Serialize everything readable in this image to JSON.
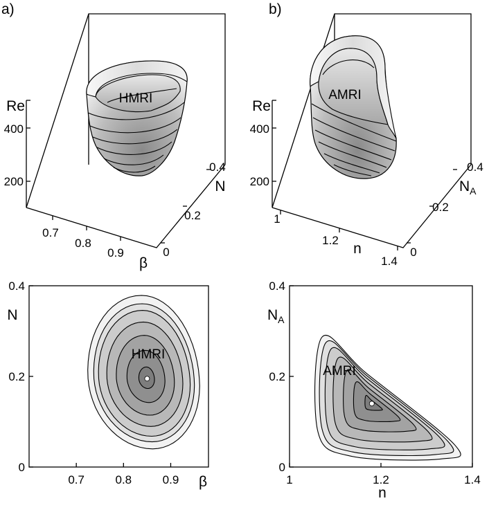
{
  "panels": {
    "a": "a)",
    "b": "b)"
  },
  "chart_data": [
    {
      "type": "surface",
      "panel": "a)",
      "surface_label": "HMRI",
      "zlabel": "Re",
      "xlabel": "β",
      "ylabel": "N",
      "x_ticks": [
        "0.7",
        "0.8",
        "0.9"
      ],
      "y_ticks": [
        "0",
        "0.2",
        "0.4"
      ],
      "z_ticks": [
        "200",
        "400"
      ],
      "xlim": [
        0.6,
        0.98
      ],
      "ylim": [
        0,
        0.4
      ],
      "zlim": [
        100,
        520
      ],
      "minimum": {
        "x": 0.85,
        "y": 0.2
      }
    },
    {
      "type": "surface",
      "panel": "b)",
      "surface_label": "AMRI",
      "zlabel": "Re",
      "xlabel": "n",
      "ylabel": "N_A",
      "x_ticks": [
        "1",
        "1.2",
        "1.4"
      ],
      "y_ticks": [
        "0",
        "0.2",
        "0.4"
      ],
      "z_ticks": [
        "200",
        "400"
      ],
      "xlim": [
        1.0,
        1.4
      ],
      "ylim": [
        0,
        0.4
      ],
      "zlim": [
        100,
        520
      ],
      "minimum": {
        "x": 1.18,
        "y": 0.14
      }
    },
    {
      "type": "contour",
      "surface_label": "HMRI",
      "xlabel": "β",
      "ylabel": "N",
      "x_ticks": [
        0.7,
        0.8,
        0.9
      ],
      "y_ticks": [
        0,
        0.2,
        0.4
      ],
      "xlim": [
        0.6,
        0.98
      ],
      "ylim": [
        0,
        0.4
      ],
      "minimum": {
        "x": 0.85,
        "y": 0.195
      }
    },
    {
      "type": "contour",
      "surface_label": "AMRI",
      "xlabel": "n",
      "ylabel": "N_A",
      "x_ticks": [
        1,
        1.2,
        1.4
      ],
      "y_ticks": [
        0,
        0.2,
        0.4
      ],
      "xlim": [
        1.0,
        1.4
      ],
      "ylim": [
        0,
        0.4
      ],
      "minimum": {
        "x": 1.18,
        "y": 0.14
      }
    }
  ]
}
